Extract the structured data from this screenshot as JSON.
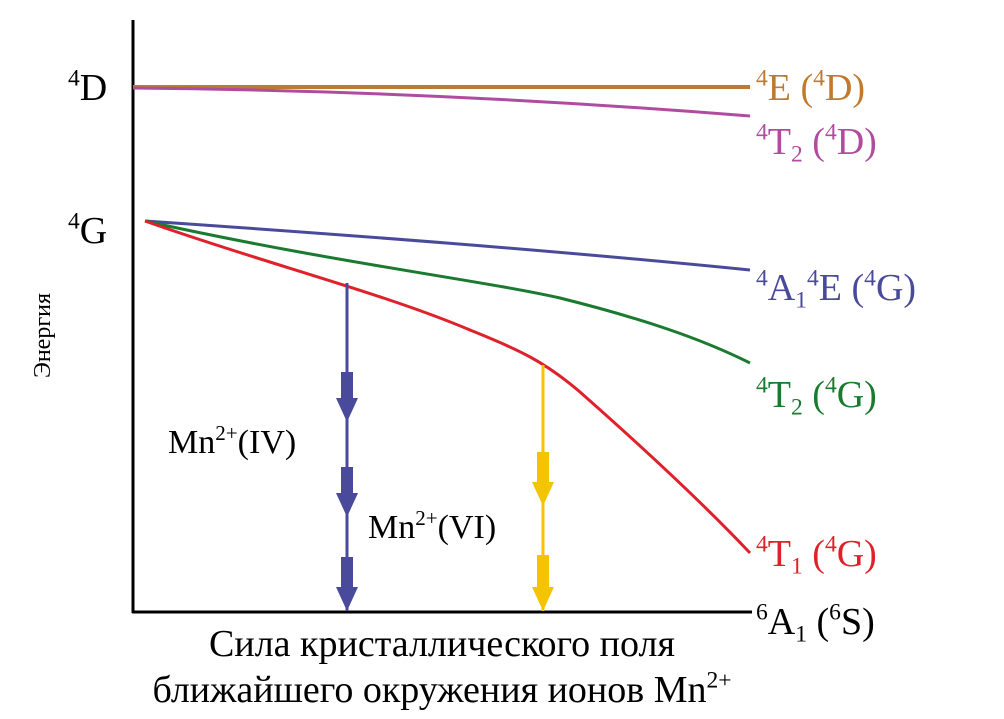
{
  "y_axis_label": "Энергия",
  "x_axis_label": [
    "Сила кристаллического поля",
    [
      {
        "t": "ближайшего окружения ионов Mn"
      },
      {
        "t": "2+",
        "s": "sup"
      }
    ]
  ],
  "left_labels": [
    {
      "id": "4D",
      "parts": [
        {
          "t": "4",
          "s": "sup"
        },
        {
          "t": "D"
        }
      ]
    },
    {
      "id": "4G",
      "parts": [
        {
          "t": "4",
          "s": "sup"
        },
        {
          "t": "G"
        }
      ]
    }
  ],
  "levels": [
    {
      "id": "4E-4D",
      "color": "#c07a30",
      "parts": [
        {
          "t": "4",
          "s": "sup"
        },
        {
          "t": "E ("
        },
        {
          "t": "4",
          "s": "sup"
        },
        {
          "t": "D)"
        }
      ]
    },
    {
      "id": "4T2-4D",
      "color": "#b04ca0",
      "parts": [
        {
          "t": "4",
          "s": "sup"
        },
        {
          "t": "T"
        },
        {
          "t": "2",
          "s": "sub"
        },
        {
          "t": " ("
        },
        {
          "t": "4",
          "s": "sup"
        },
        {
          "t": "D)"
        }
      ]
    },
    {
      "id": "4A1-4E-4G",
      "color": "#4a4a9c",
      "parts": [
        {
          "t": "4",
          "s": "sup"
        },
        {
          "t": "A"
        },
        {
          "t": "1",
          "s": "sub"
        },
        {
          "t": "4",
          "s": "sup"
        },
        {
          "t": "E ("
        },
        {
          "t": "4",
          "s": "sup"
        },
        {
          "t": "G)"
        }
      ]
    },
    {
      "id": "4T2-4G",
      "color": "#1a7a30",
      "parts": [
        {
          "t": "4",
          "s": "sup"
        },
        {
          "t": "T"
        },
        {
          "t": "2",
          "s": "sub"
        },
        {
          "t": " ("
        },
        {
          "t": "4",
          "s": "sup"
        },
        {
          "t": "G)"
        }
      ]
    },
    {
      "id": "4T1-4G",
      "color": "#e0202a",
      "parts": [
        {
          "t": "4",
          "s": "sup"
        },
        {
          "t": "T"
        },
        {
          "t": "1",
          "s": "sub"
        },
        {
          "t": " ("
        },
        {
          "t": "4",
          "s": "sup"
        },
        {
          "t": "G)"
        }
      ]
    },
    {
      "id": "6A1-6S",
      "color": "#000000",
      "parts": [
        {
          "t": "6",
          "s": "sup"
        },
        {
          "t": "A"
        },
        {
          "t": "1",
          "s": "sub"
        },
        {
          "t": " ("
        },
        {
          "t": "6",
          "s": "sup"
        },
        {
          "t": "S)"
        }
      ]
    }
  ],
  "transitions": [
    {
      "id": "mn-iv",
      "color": "#4a4a9c",
      "parts": [
        {
          "t": "Mn"
        },
        {
          "t": "2+",
          "s": "sup"
        },
        {
          "t": "(IV)"
        }
      ]
    },
    {
      "id": "mn-vi",
      "color": "#f5c400",
      "parts": [
        {
          "t": "Mn"
        },
        {
          "t": "2+",
          "s": "sup"
        },
        {
          "t": "(VI)"
        }
      ]
    }
  ]
}
